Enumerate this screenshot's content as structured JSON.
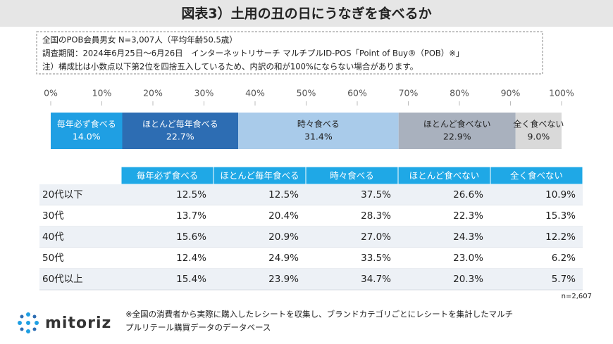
{
  "header": {
    "title": "図表3）土用の丑の日にうなぎを食べるか"
  },
  "notes": [
    "全国のPOB会員男女 N=3,007人（平均年齢50.5歳）",
    "調査期間：2024年6月25日～6月26日　インターネットリサーチ マルチプルID-POS「Point of Buy®（POB）※」",
    "注）構成比は小数点以下第2位を四捨五入しているため、内訳の和が100%にならない場合があります。"
  ],
  "chart_data": {
    "type": "stacked-bar",
    "xlim": [
      0,
      100
    ],
    "xticks": [
      {
        "value": 0,
        "label": "0%"
      },
      {
        "value": 10,
        "label": "10%"
      },
      {
        "value": 20,
        "label": "20%"
      },
      {
        "value": 30,
        "label": "30%"
      },
      {
        "value": 40,
        "label": "40%"
      },
      {
        "value": 50,
        "label": "50%"
      },
      {
        "value": 60,
        "label": "60%"
      },
      {
        "value": 70,
        "label": "70%"
      },
      {
        "value": 80,
        "label": "80%"
      },
      {
        "value": 90,
        "label": "90%"
      },
      {
        "value": 100,
        "label": "100%"
      }
    ],
    "series": [
      {
        "name": "毎年必ず食べる",
        "color": "#1f9fe3",
        "values": [
          14.0
        ],
        "value_labels": [
          "14.0%"
        ]
      },
      {
        "name": "ほとんど毎年食べる",
        "color": "#2d6db3",
        "values": [
          22.7
        ],
        "value_labels": [
          "22.7%"
        ]
      },
      {
        "name": "時々食べる",
        "color": "#a9cbea",
        "values": [
          31.4
        ],
        "value_labels": [
          "31.4%"
        ]
      },
      {
        "name": "ほとんど食べない",
        "color": "#a9b1be",
        "values": [
          22.9
        ],
        "value_labels": [
          "22.9%"
        ]
      },
      {
        "name": "全く食べない",
        "color": "#d9d9d9",
        "values": [
          9.0
        ],
        "value_labels": [
          "9.0%"
        ]
      }
    ]
  },
  "table": {
    "columns": [
      "毎年必ず食べる",
      "ほとんど毎年食べる",
      "時々食べる",
      "ほとんど食べない",
      "全く食べない"
    ],
    "rows": [
      {
        "label": "20代以下",
        "cells": [
          "12.5%",
          "12.5%",
          "37.5%",
          "26.6%",
          "10.9%"
        ]
      },
      {
        "label": "30代",
        "cells": [
          "13.7%",
          "20.4%",
          "28.3%",
          "22.3%",
          "15.3%"
        ]
      },
      {
        "label": "40代",
        "cells": [
          "15.6%",
          "20.9%",
          "27.0%",
          "24.3%",
          "12.2%"
        ]
      },
      {
        "label": "50代",
        "cells": [
          "12.4%",
          "24.9%",
          "33.5%",
          "23.0%",
          "6.2%"
        ]
      },
      {
        "label": "60代以上",
        "cells": [
          "15.4%",
          "23.9%",
          "34.7%",
          "20.3%",
          "5.7%"
        ]
      }
    ]
  },
  "sample": "n=2,607",
  "logo": "mitoriz",
  "footnote": [
    "※全国の消費者から実際に購入したレシートを収集し、ブランドカテゴリごとにレシートを集計したマルチ",
    "プルリテール購買データのデータベース"
  ]
}
